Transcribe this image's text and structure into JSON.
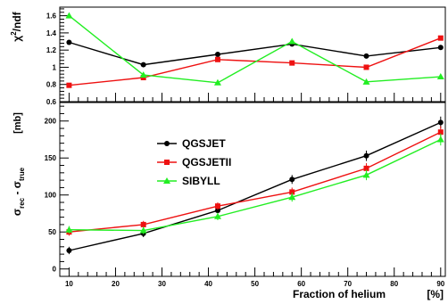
{
  "chart_data": [
    {
      "type": "line",
      "ylabel_parts": [
        "χ",
        "2",
        "/ndf"
      ],
      "xlim": [
        8,
        91
      ],
      "ylim": [
        0.6,
        1.7
      ],
      "yticks": [
        0.6,
        0.8,
        1.0,
        1.2,
        1.4,
        1.6
      ],
      "ytick_labels": [
        "0.6",
        "0.8",
        "1",
        "1.2",
        "1.4",
        "1.6"
      ],
      "x": [
        10,
        26,
        42,
        58,
        74,
        90
      ],
      "series": [
        {
          "name": "QGSJET",
          "color": "#000000",
          "marker": "circle",
          "values": [
            1.29,
            1.03,
            1.15,
            1.27,
            1.13,
            1.23
          ]
        },
        {
          "name": "QGSJETII",
          "color": "#ee1111",
          "marker": "square",
          "values": [
            0.79,
            0.88,
            1.09,
            1.05,
            1.0,
            1.34
          ]
        },
        {
          "name": "SIBYLL",
          "color": "#22ee22",
          "marker": "triangle",
          "values": [
            1.6,
            0.91,
            0.82,
            1.3,
            0.83,
            0.89
          ]
        }
      ]
    },
    {
      "type": "line",
      "ylabel_main": "σ",
      "ylabel_sub1": "rec",
      "ylabel_mid": " - σ",
      "ylabel_sub2": "true",
      "yunit": "[mb]",
      "xlabel": "Fraction of helium",
      "xunit": "[%]",
      "xlim": [
        8,
        91
      ],
      "ylim": [
        -10,
        225
      ],
      "yticks": [
        0,
        50,
        100,
        150,
        200
      ],
      "ytick_labels": [
        "0",
        "50",
        "100",
        "150",
        "200"
      ],
      "xticks": [
        10,
        20,
        30,
        40,
        50,
        60,
        70,
        80,
        90
      ],
      "xtick_labels": [
        "10",
        "20",
        "30",
        "40",
        "50",
        "60",
        "70",
        "80",
        "90"
      ],
      "x": [
        10,
        26,
        42,
        58,
        74,
        90
      ],
      "series": [
        {
          "name": "QGSJET",
          "color": "#000000",
          "marker": "circle",
          "values": [
            25,
            48,
            79,
            121,
            153,
            198
          ],
          "errors": [
            5,
            5,
            5,
            6,
            7,
            8
          ]
        },
        {
          "name": "QGSJETII",
          "color": "#ee1111",
          "marker": "square",
          "values": [
            50,
            60,
            85,
            104,
            136,
            185
          ],
          "errors": [
            5,
            5,
            5,
            6,
            7,
            8
          ]
        },
        {
          "name": "SIBYLL",
          "color": "#22ee22",
          "marker": "triangle",
          "values": [
            53,
            52,
            71,
            97,
            127,
            175
          ],
          "errors": [
            5,
            5,
            5,
            6,
            7,
            8
          ]
        }
      ],
      "legend": {
        "placement": "top-left",
        "entries": [
          "QGSJET",
          "QGSJETII",
          "SIBYLL"
        ]
      }
    }
  ]
}
